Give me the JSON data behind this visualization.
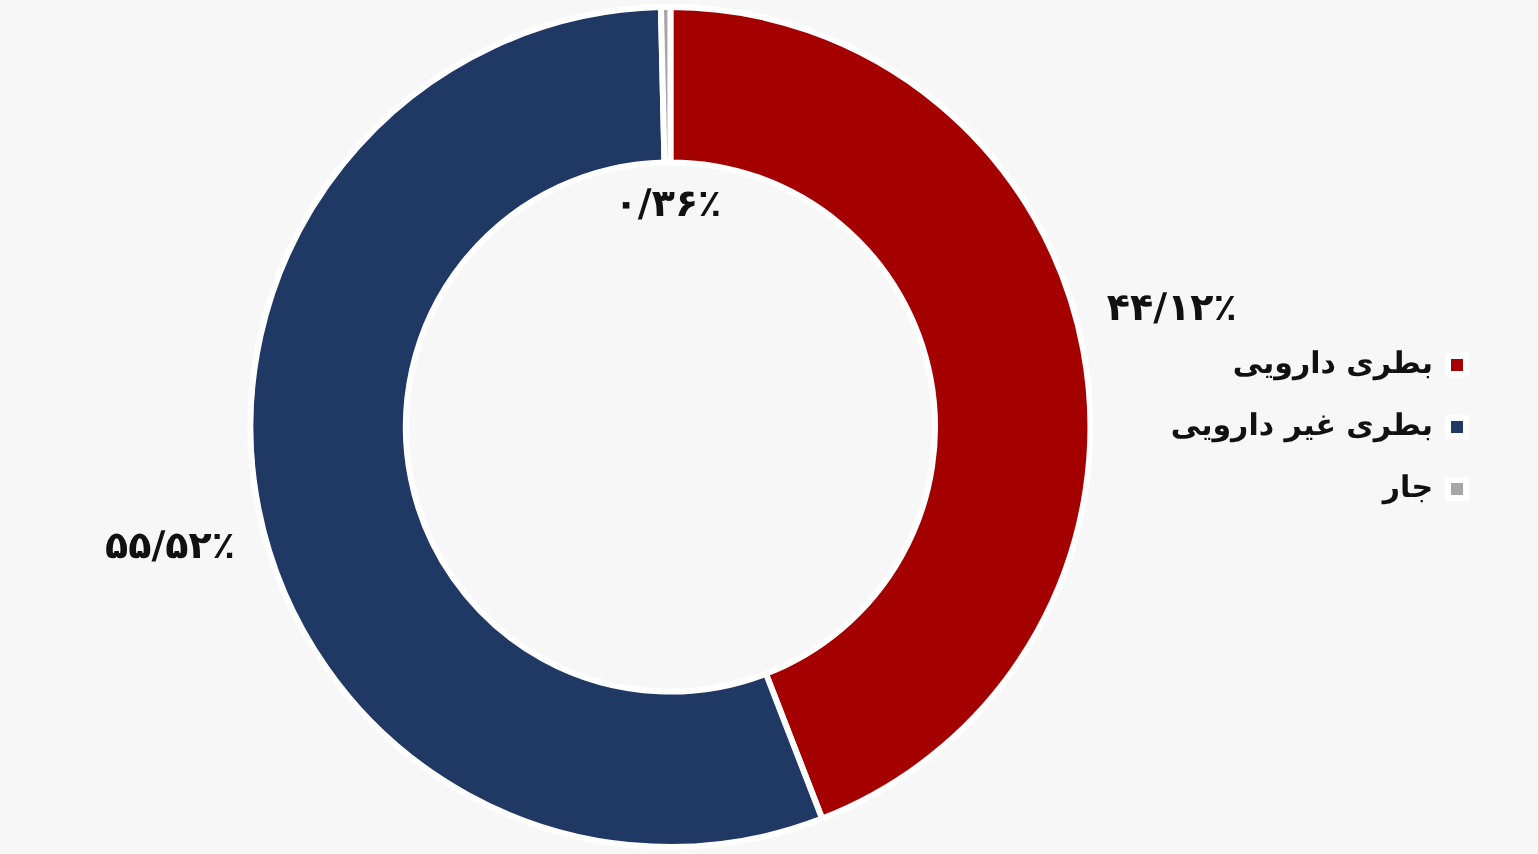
{
  "chart_data": {
    "type": "donut",
    "categories": [
      "بطری دارویی",
      "بطری غیر دارویی",
      "جار"
    ],
    "values": [
      44.12,
      55.52,
      0.36
    ],
    "colors": [
      "#a50000",
      "#203864",
      "#a6a6a6"
    ],
    "value_labels": [
      "۴۴/۱۲٪",
      "۵۵/۵۲٪",
      "۰/۳۶٪"
    ],
    "legend": "right"
  }
}
